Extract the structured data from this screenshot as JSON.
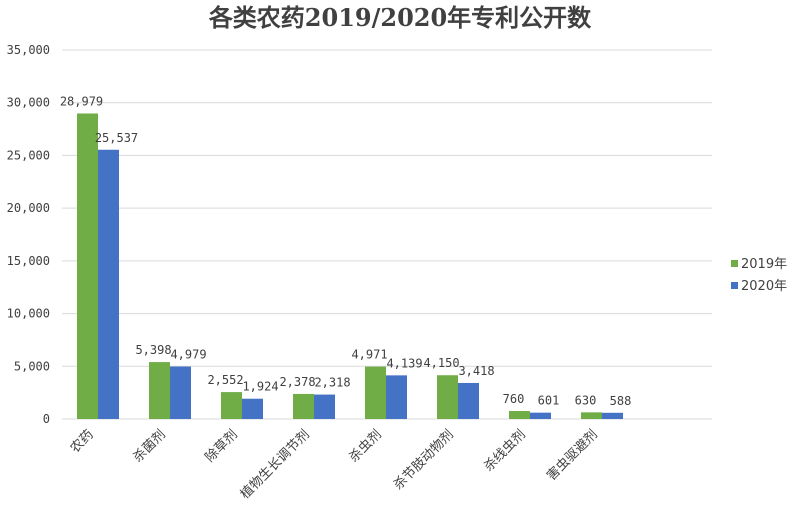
{
  "chart_data": {
    "type": "bar",
    "title": "各类农药2019/2020年专利公开数",
    "categories": [
      "农药",
      "杀菌剂",
      "除草剂",
      "植物生长调节剂",
      "杀虫剂",
      "杀节肢动物剂",
      "杀线虫剂",
      "害虫驱避剂"
    ],
    "series": [
      {
        "name": "2019年",
        "values": [
          28979,
          5398,
          2552,
          2378,
          4971,
          4150,
          760,
          630
        ],
        "labels": [
          "28,979",
          "5,398",
          "2,552",
          "2,378",
          "4,971",
          "4,150",
          "760",
          "630"
        ],
        "color": "#70ad47"
      },
      {
        "name": "2020年",
        "values": [
          25537,
          4979,
          1924,
          2318,
          4139,
          3418,
          601,
          588
        ],
        "labels": [
          "25,537",
          "4,979",
          "1,924",
          "2,318",
          "4,139",
          "3,418",
          "601",
          "588"
        ],
        "color": "#4472c4"
      }
    ],
    "ylim": [
      0,
      35000
    ],
    "yticks": [
      0,
      5000,
      10000,
      15000,
      20000,
      25000,
      30000,
      35000
    ],
    "ytick_labels": [
      "0",
      "5,000",
      "10,000",
      "15,000",
      "20,000",
      "25,000",
      "30,000",
      "35,000"
    ],
    "grid": true,
    "legend_position": "right"
  }
}
